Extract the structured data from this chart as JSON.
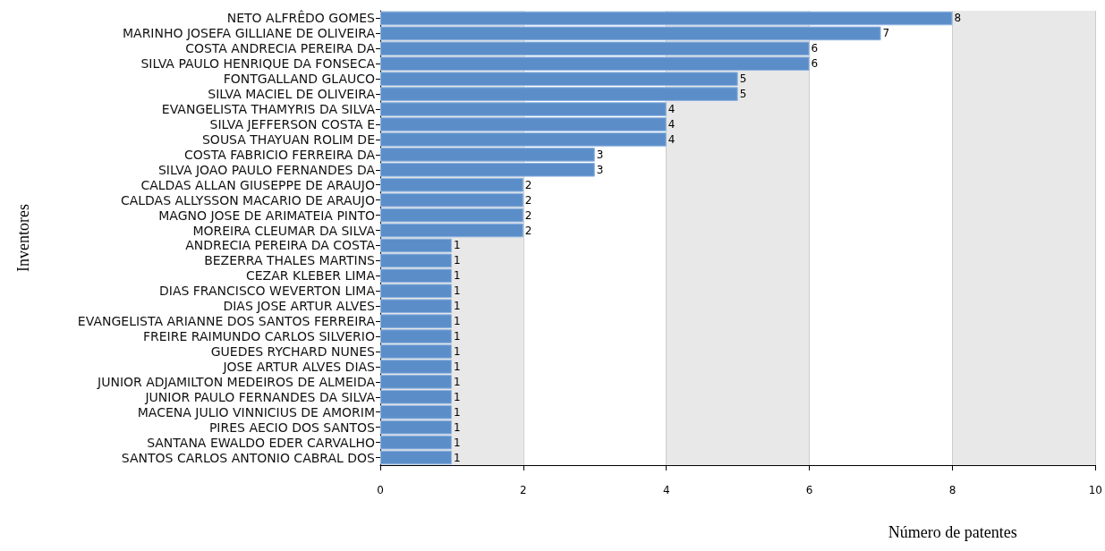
{
  "chart_data": {
    "type": "bar",
    "orientation": "horizontal",
    "xlabel": "Número de patentes",
    "ylabel": "Inventores",
    "categories": [
      "NETO ALFRÊDO GOMES",
      "MARINHO JOSEFA GILLIANE DE OLIVEIRA",
      "COSTA ANDRECIA PEREIRA DA",
      "SILVA PAULO HENRIQUE DA FONSECA",
      "FONTGALLAND GLAUCO",
      "SILVA MACIEL DE OLIVEIRA",
      "EVANGELISTA THAMYRIS DA SILVA",
      "SILVA JEFFERSON COSTA E",
      "SOUSA THAYUAN ROLIM DE",
      "COSTA FABRICIO FERREIRA DA",
      "SILVA JOAO PAULO FERNANDES DA",
      "CALDAS ALLAN GIUSEPPE DE ARAUJO",
      "CALDAS ALLYSSON MACARIO DE ARAUJO",
      "MAGNO JOSE DE ARIMATEIA PINTO",
      "MOREIRA CLEUMAR DA SILVA",
      "ANDRECIA PEREIRA DA COSTA",
      "BEZERRA THALES MARTINS",
      "CEZAR KLEBER LIMA",
      "DIAS FRANCISCO WEVERTON LIMA",
      "DIAS JOSE ARTUR ALVES",
      "EVANGELISTA ARIANNE DOS SANTOS FERREIRA",
      "FREIRE RAIMUNDO CARLOS SILVERIO",
      "GUEDES RYCHARD NUNES",
      "JOSE ARTUR ALVES DIAS",
      "JUNIOR ADJAMILTON MEDEIROS DE ALMEIDA",
      "JUNIOR PAULO FERNANDES DA SILVA",
      "MACENA JULIO VINNICIUS DE AMORIM",
      "PIRES AECIO DOS SANTOS",
      "SANTANA EWALDO EDER CARVALHO",
      "SANTOS CARLOS ANTONIO CABRAL DOS"
    ],
    "values": [
      8,
      7,
      6,
      6,
      5,
      5,
      4,
      4,
      4,
      3,
      3,
      2,
      2,
      2,
      2,
      1,
      1,
      1,
      1,
      1,
      1,
      1,
      1,
      1,
      1,
      1,
      1,
      1,
      1,
      1
    ],
    "color": "#5b8ec9",
    "data_labels": true,
    "grid": "x",
    "xlim": [
      0,
      10
    ],
    "xticks": [
      0,
      2,
      4,
      6,
      8,
      10
    ]
  }
}
